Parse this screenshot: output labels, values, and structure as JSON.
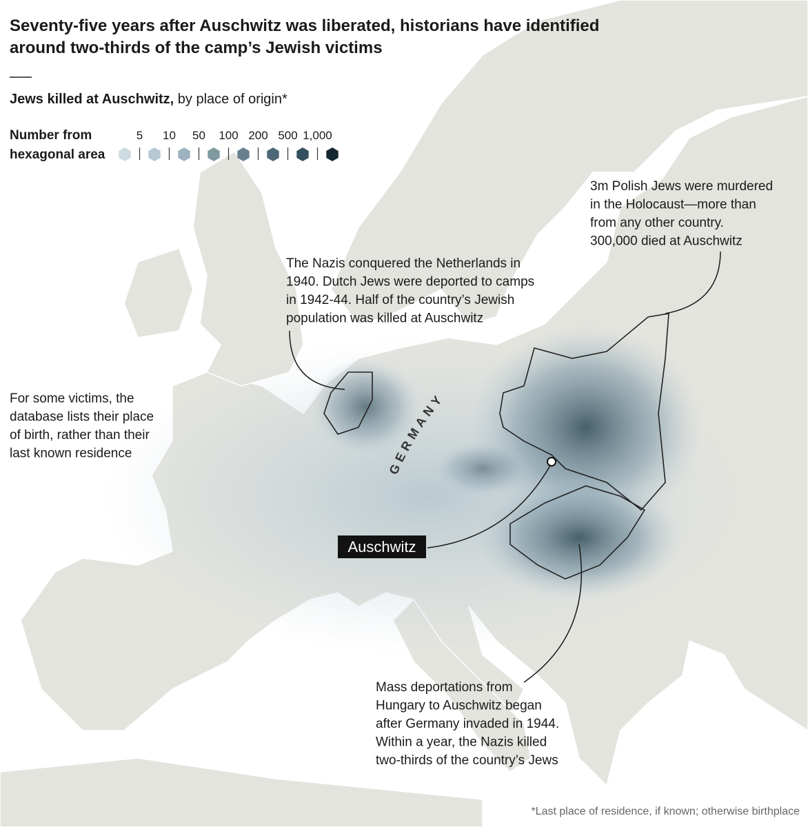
{
  "header": {
    "title_lines": [
      "Seventy-five years after Auschwitz was liberated, historians have identified",
      "around two-thirds of the camp’s Jewish victims"
    ],
    "subtitle_bold": "Jews killed at Auschwitz,",
    "subtitle_rest": " by place of origin*"
  },
  "legend": {
    "title_lines": [
      "Number from",
      "hexagonal area"
    ],
    "breaks": [
      "5",
      "10",
      "50",
      "100",
      "200",
      "500",
      "1,000"
    ],
    "colors": [
      "#cfdbe2",
      "#b6c8d2",
      "#9cb2bf",
      "#80999f",
      "#67818f",
      "#4e6877",
      "#34505e",
      "#13282f"
    ]
  },
  "map": {
    "country_label": "GERMANY",
    "camp_label": "Auschwitz"
  },
  "annotations": [
    {
      "lines": [
        "3m Polish Jews were murdered",
        "in the Holocaust—more than",
        "from any other country.",
        "300,000 died at Auschwitz"
      ]
    },
    {
      "lines": [
        "The Nazis conquered the Netherlands in",
        "1940. Dutch Jews were deported to camps",
        "in 1942-44. Half of the country’s Jewish",
        "population was killed at Auschwitz"
      ]
    },
    {
      "lines": [
        "For some victims, the",
        "database lists their place",
        "of birth, rather than their",
        "last known residence"
      ]
    },
    {
      "lines": [
        "Mass deportations from",
        "Hungary to Auschwitz began",
        "after Germany invaded in 1944.",
        "Within a year, the Nazis killed",
        "two-thirds of the country’s Jews"
      ]
    }
  ],
  "footnote": "*Last place of residence, if known; otherwise birthplace"
}
